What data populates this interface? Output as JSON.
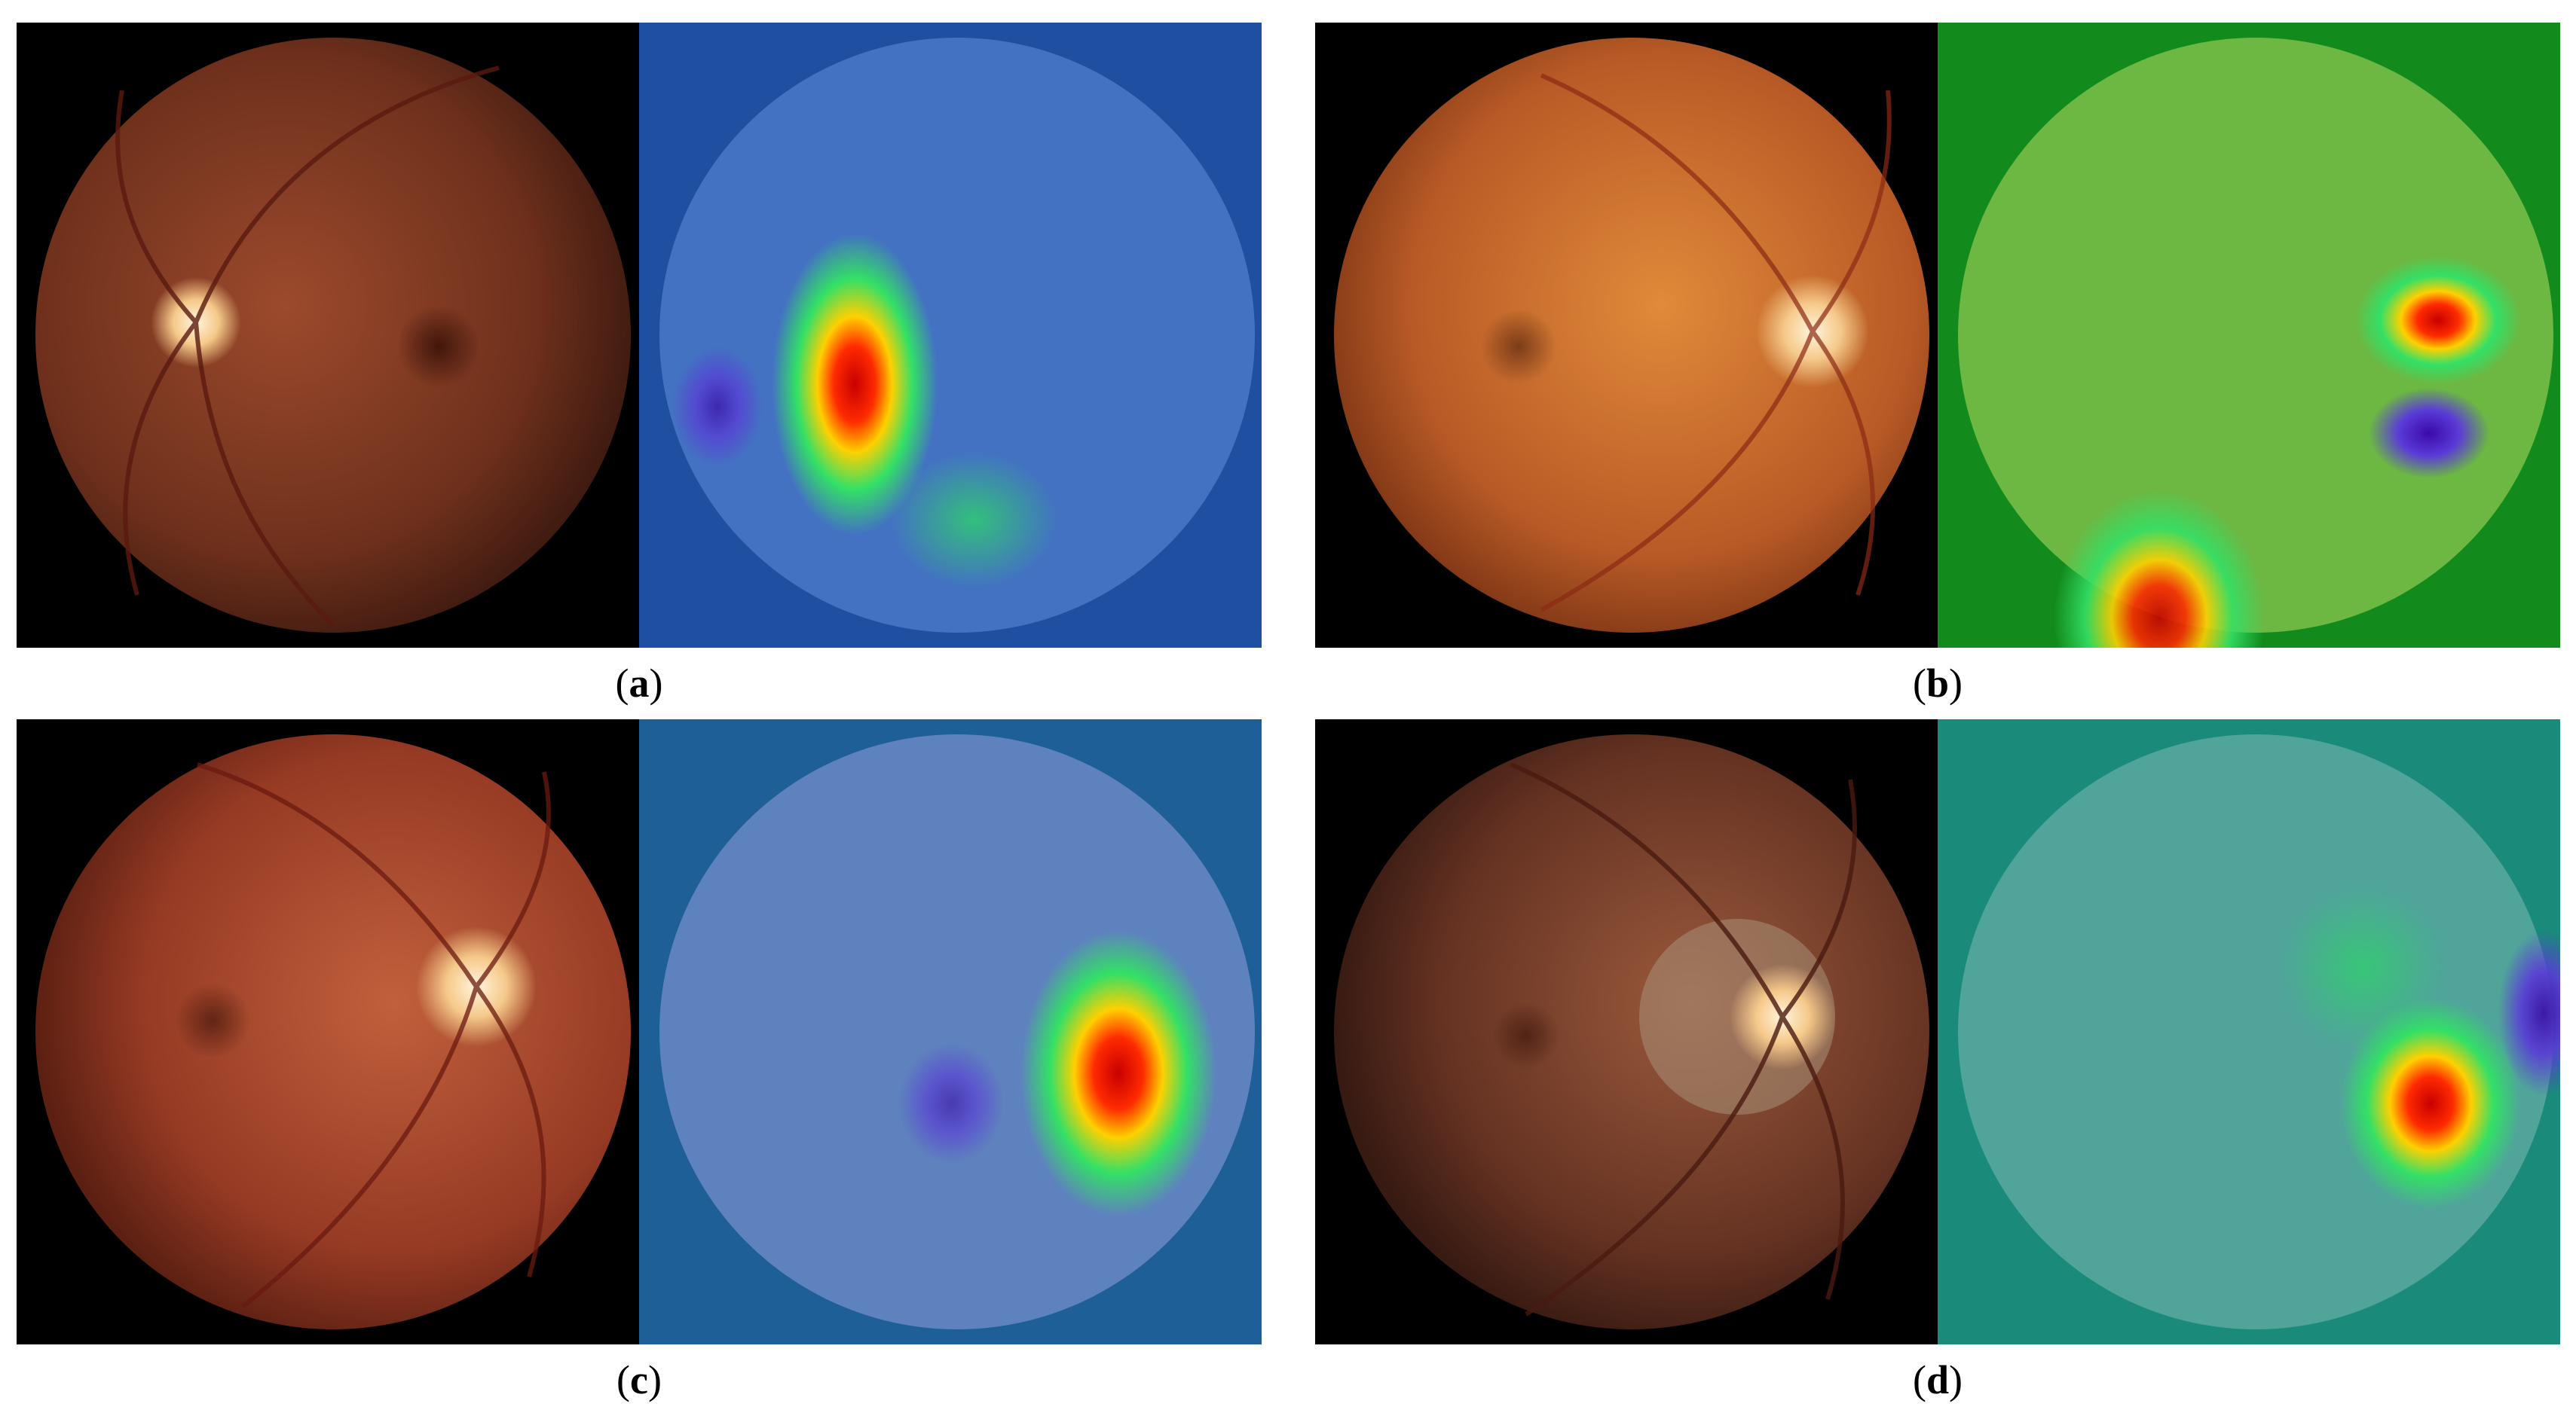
{
  "panels": [
    {
      "id": "a",
      "label": "a",
      "fundus_tint": "#7a3a22",
      "overlay_base": "#1f5fb0"
    },
    {
      "id": "b",
      "label": "b",
      "fundus_tint": "#c0652a",
      "overlay_base": "#1f9a2a"
    },
    {
      "id": "c",
      "label": "c",
      "fundus_tint": "#a8462b",
      "overlay_base": "#1f6fa6"
    },
    {
      "id": "d",
      "label": "d",
      "fundus_tint": "#6d3a24",
      "overlay_base": "#1f9580"
    }
  ],
  "caption_parens": {
    "open": "(",
    "close": ")"
  }
}
